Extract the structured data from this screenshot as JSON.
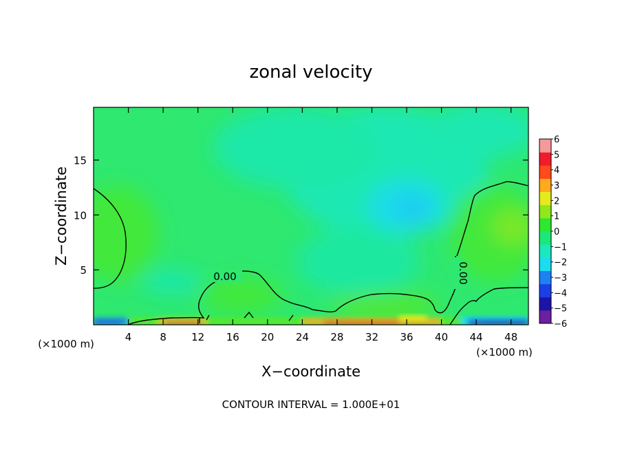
{
  "chart_data": {
    "type": "heatmap",
    "title": "zonal velocity",
    "xlabel": "X−coordinate",
    "ylabel": "Z−coordinate",
    "x_unit": "(×1000 m)",
    "z_unit": "(×1000 m)",
    "xlim": [
      0,
      50
    ],
    "ylim": [
      0,
      19.8
    ],
    "x_ticks": [
      4,
      8,
      12,
      16,
      20,
      24,
      28,
      32,
      36,
      40,
      44,
      48
    ],
    "y_ticks": [
      5,
      10,
      15
    ],
    "colorbar": {
      "levels": [
        -6,
        -5,
        -4,
        -3,
        -2,
        -1,
        0,
        1,
        2,
        3,
        4,
        5,
        6
      ],
      "labels": [
        "6",
        "5",
        "4",
        "3",
        "2",
        "1",
        "0",
        "−1",
        "−2",
        "−3",
        "−4",
        "−5",
        "−6"
      ],
      "colors": [
        "#6c1f9e",
        "#1c14a8",
        "#1c3ee6",
        "#1c82f0",
        "#1cdcf0",
        "#1ce8c0",
        "#1ce87a",
        "#2ee830",
        "#8ee81c",
        "#e6ea1c",
        "#ffaa1c",
        "#ff4a1c",
        "#f01c2c",
        "#f59a9a"
      ]
    },
    "contour_labels": [
      "0.00",
      "0.00"
    ],
    "contour_interval_text": "CONTOUR INTERVAL = 1.000E+01"
  }
}
